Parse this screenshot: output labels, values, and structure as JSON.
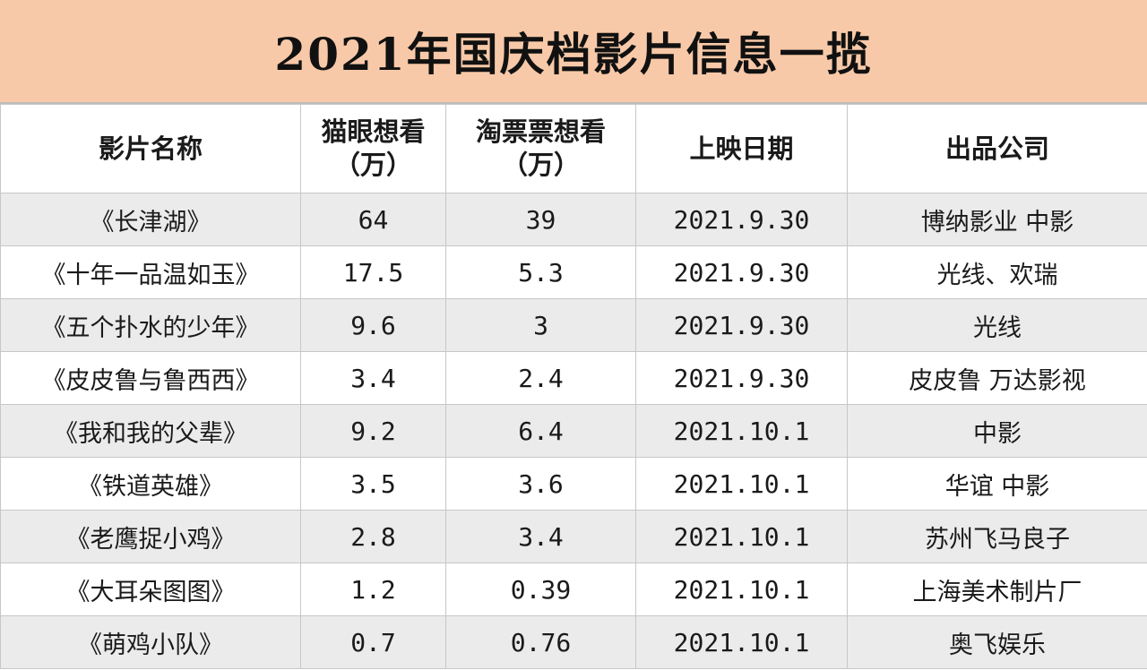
{
  "title": "2021年国庆档影片信息一揽",
  "colors": {
    "title_background": "#f8c9a8",
    "stripe_row": "#ebebeb",
    "plain_row": "#ffffff",
    "grid_line": "#c7c7c7"
  },
  "table": {
    "headers": [
      {
        "line1": "影片名称",
        "line2": ""
      },
      {
        "line1": "猫眼想看",
        "line2": "（万）"
      },
      {
        "line1": "淘票票想看",
        "line2": "（万）"
      },
      {
        "line1": "上映日期",
        "line2": ""
      },
      {
        "line1": "出品公司",
        "line2": ""
      }
    ],
    "rows": [
      [
        "《长津湖》",
        "64",
        "39",
        "2021.9.30",
        "博纳影业 中影"
      ],
      [
        "《十年一品温如玉》",
        "17.5",
        "5.3",
        "2021.9.30",
        "光线、欢瑞"
      ],
      [
        "《五个扑水的少年》",
        "9.6",
        "3",
        "2021.9.30",
        "光线"
      ],
      [
        "《皮皮鲁与鲁西西》",
        "3.4",
        "2.4",
        "2021.9.30",
        "皮皮鲁 万达影视"
      ],
      [
        "《我和我的父辈》",
        "9.2",
        "6.4",
        "2021.10.1",
        "中影"
      ],
      [
        "《铁道英雄》",
        "3.5",
        "3.6",
        "2021.10.1",
        "华谊 中影"
      ],
      [
        "《老鹰捉小鸡》",
        "2.8",
        "3.4",
        "2021.10.1",
        "苏州飞马良子"
      ],
      [
        "《大耳朵图图》",
        "1.2",
        "0.39",
        "2021.10.1",
        "上海美术制片厂"
      ],
      [
        "《萌鸡小队》",
        "0.7",
        "0.76",
        "2021.10.1",
        "奥飞娱乐"
      ]
    ]
  }
}
